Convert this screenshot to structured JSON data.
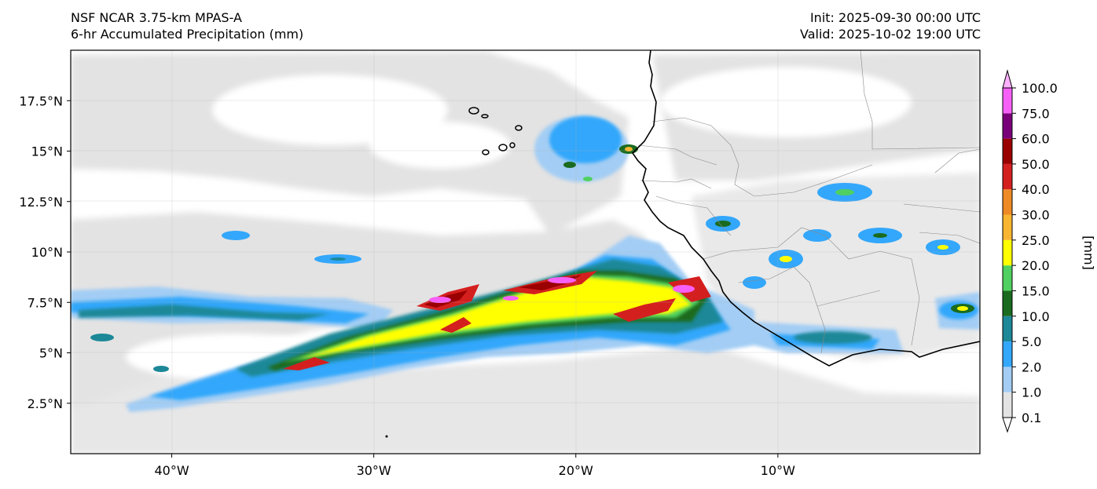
{
  "titles": {
    "left_line1": "NSF NCAR 3.75-km MPAS-A",
    "left_line2": "6-hr Accumulated Precipitation (mm)",
    "right_line1": "Init: 2025-09-30 00:00 UTC",
    "right_line2": "Valid: 2025-10-02 19:00 UTC"
  },
  "map": {
    "lon_range": [
      -45,
      0
    ],
    "lat_range": [
      0,
      20
    ],
    "lon_ticks": [
      {
        "value": -40,
        "label": "40°W"
      },
      {
        "value": -30,
        "label": "30°W"
      },
      {
        "value": -20,
        "label": "20°W"
      },
      {
        "value": -10,
        "label": "10°W"
      }
    ],
    "lat_ticks": [
      {
        "value": 17.5,
        "label": "17.5°N"
      },
      {
        "value": 15,
        "label": "15°N"
      },
      {
        "value": 12.5,
        "label": "12.5°N"
      },
      {
        "value": 10,
        "label": "10°N"
      },
      {
        "value": 7.5,
        "label": "7.5°N"
      },
      {
        "value": 5,
        "label": "5°N"
      },
      {
        "value": 2.5,
        "label": "2.5°N"
      }
    ]
  },
  "colorbar": {
    "unit_label": "[mm]",
    "levels": [
      {
        "label": "0.1",
        "color": "#e3e3e3"
      },
      {
        "label": "1.0",
        "color": "#a3cdf4"
      },
      {
        "label": "2.0",
        "color": "#33a7fb"
      },
      {
        "label": "5.0",
        "color": "#1c8898"
      },
      {
        "label": "10.0",
        "color": "#1a6b1f"
      },
      {
        "label": "15.0",
        "color": "#50d060"
      },
      {
        "label": "20.0",
        "color": "#ffff00"
      },
      {
        "label": "25.0",
        "color": "#f8b531"
      },
      {
        "label": "30.0",
        "color": "#ee8a25"
      },
      {
        "label": "40.0",
        "color": "#d41f1f"
      },
      {
        "label": "50.0",
        "color": "#9a0000"
      },
      {
        "label": "60.0",
        "color": "#7a007a"
      },
      {
        "label": "75.0",
        "color": "#f760f7"
      },
      {
        "label": "100.0",
        "color": ""
      }
    ],
    "over_color": "#ffb0ff",
    "under_color": "#ffffff"
  }
}
